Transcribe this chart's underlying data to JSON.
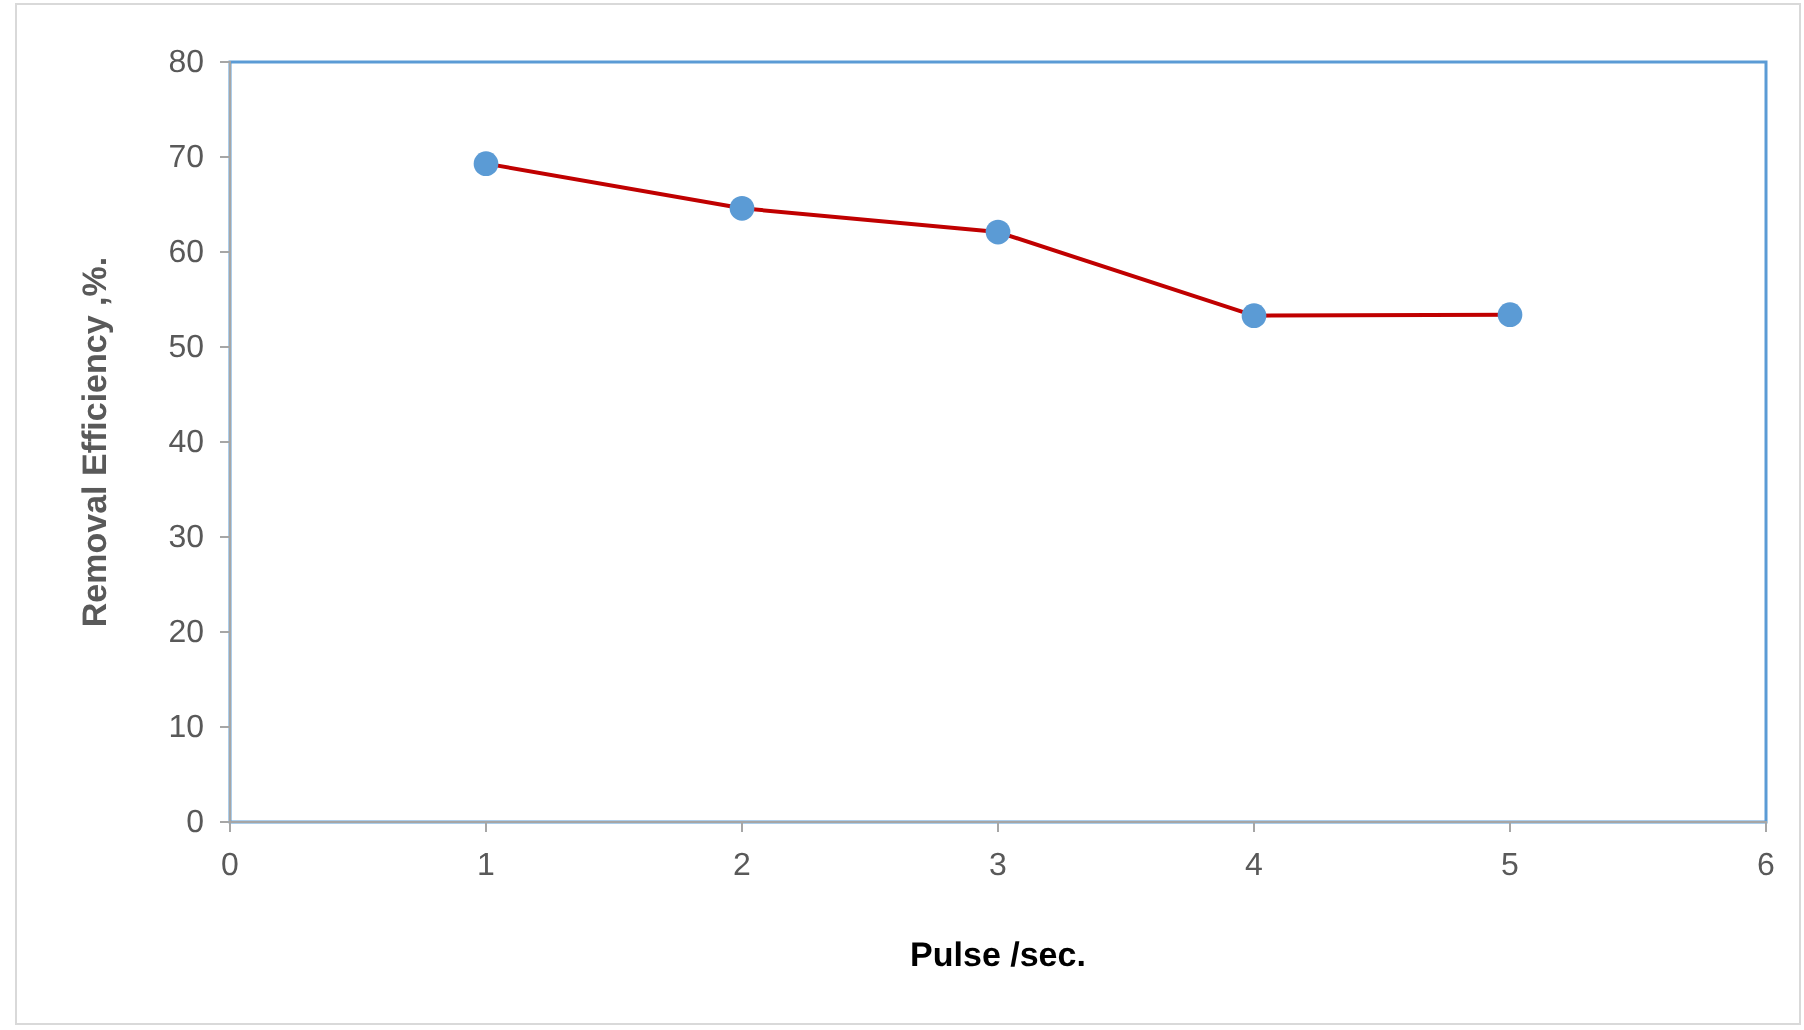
{
  "chart_data": {
    "type": "line",
    "xlabel": "Pulse /sec.",
    "ylabel": "Removal Efficiency ,%.",
    "x": [
      1,
      2,
      3,
      4,
      5
    ],
    "series": [
      {
        "color": "#c00000",
        "colors": [
          "#5b9bd5",
          "#5b9bd5",
          "#5b9bd5",
          "#5b9bd5",
          "#5b9bd5"
        ],
        "values": [
          69.3,
          64.6,
          62.1,
          53.3,
          53.4
        ]
      }
    ],
    "marker": "circle",
    "xlim": [
      0,
      6
    ],
    "xticks": [
      0,
      1,
      2,
      3,
      4,
      5,
      6
    ],
    "ylim": [
      0,
      80
    ],
    "yticks": [
      0,
      10,
      20,
      30,
      40,
      50,
      60,
      70,
      80
    ],
    "grid": false
  }
}
